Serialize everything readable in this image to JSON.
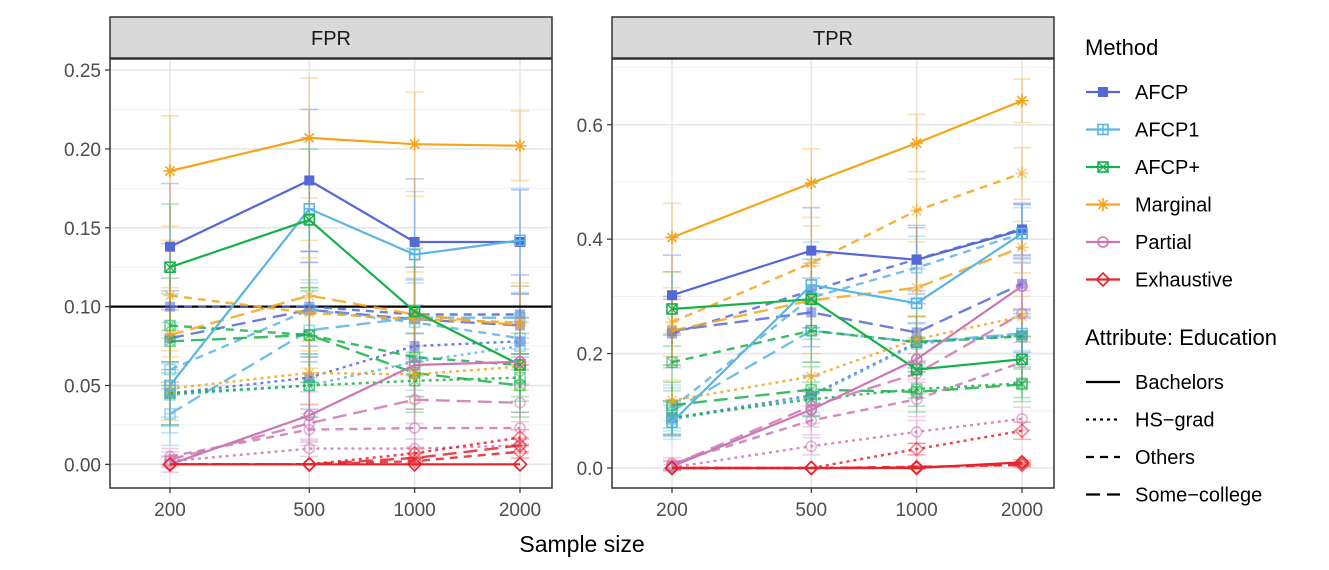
{
  "chart_data": {
    "type": "line",
    "xlabel": "Sample size",
    "x": [
      200,
      500,
      1000,
      2000
    ],
    "x_scale": "log",
    "x_tick_labels": [
      "200",
      "500",
      "1000",
      "2000"
    ],
    "reference_line": {
      "panel": "FPR",
      "y": 0.1
    },
    "panels": [
      {
        "title": "FPR",
        "ylim": [
          -0.015,
          0.257
        ],
        "yticks": [
          0,
          0.05,
          0.1,
          0.15,
          0.2,
          0.25
        ],
        "ytick_labels": [
          "0.00",
          "0.05",
          "0.10",
          "0.15",
          "0.20",
          "0.25"
        ],
        "series": [
          {
            "method": "AFCP",
            "education": "Bachelors",
            "values": [
              0.138,
              0.18,
              0.141,
              0.141
            ],
            "err": [
              0.04,
              0.045,
              0.04,
              0.033
            ]
          },
          {
            "method": "AFCP",
            "education": "HS-grad",
            "values": [
              0.045,
              0.055,
              0.075,
              0.078
            ],
            "err": [
              0.02,
              0.02,
              0.018,
              0.015
            ]
          },
          {
            "method": "AFCP",
            "education": "Others",
            "values": [
              0.1,
              0.1,
              0.095,
              0.095
            ],
            "err": [
              0.04,
              0.035,
              0.03,
              0.025
            ]
          },
          {
            "method": "AFCP",
            "education": "Some-college",
            "values": [
              0.08,
              0.098,
              0.092,
              0.088
            ],
            "err": [
              0.03,
              0.03,
              0.025,
              0.02
            ]
          },
          {
            "method": "AFCP1",
            "education": "Bachelors",
            "values": [
              0.05,
              0.162,
              0.133,
              0.142
            ],
            "err": [
              0.03,
              0.045,
              0.04,
              0.033
            ]
          },
          {
            "method": "AFCP1",
            "education": "HS-grad",
            "values": [
              0.044,
              0.05,
              0.065,
              0.075
            ],
            "err": [
              0.02,
              0.02,
              0.018,
              0.015
            ]
          },
          {
            "method": "AFCP1",
            "education": "Others",
            "values": [
              0.06,
              0.098,
              0.09,
              0.08
            ],
            "err": [
              0.03,
              0.03,
              0.025,
              0.02
            ]
          },
          {
            "method": "AFCP1",
            "education": "Some-college",
            "values": [
              0.032,
              0.085,
              0.093,
              0.093
            ],
            "err": [
              0.02,
              0.03,
              0.025,
              0.02
            ]
          },
          {
            "method": "AFCP+",
            "education": "Bachelors",
            "values": [
              0.125,
              0.155,
              0.097,
              0.063
            ],
            "err": [
              0.04,
              0.045,
              0.04,
              0.03
            ]
          },
          {
            "method": "AFCP+",
            "education": "HS-grad",
            "values": [
              0.045,
              0.05,
              0.053,
              0.055
            ],
            "err": [
              0.02,
              0.02,
              0.018,
              0.015
            ]
          },
          {
            "method": "AFCP+",
            "education": "Others",
            "values": [
              0.088,
              0.082,
              0.068,
              0.063
            ],
            "err": [
              0.03,
              0.03,
              0.025,
              0.02
            ]
          },
          {
            "method": "AFCP+",
            "education": "Some-college",
            "values": [
              0.078,
              0.082,
              0.058,
              0.05
            ],
            "err": [
              0.03,
              0.03,
              0.025,
              0.02
            ]
          },
          {
            "method": "Marginal",
            "education": "Bachelors",
            "values": [
              0.186,
              0.207,
              0.203,
              0.202
            ],
            "err": [
              0.035,
              0.038,
              0.033,
              0.022
            ]
          },
          {
            "method": "Marginal",
            "education": "HS-grad",
            "values": [
              0.048,
              0.058,
              0.057,
              0.062
            ],
            "err": [
              0.02,
              0.02,
              0.018,
              0.015
            ]
          },
          {
            "method": "Marginal",
            "education": "Others",
            "values": [
              0.107,
              0.096,
              0.092,
              0.09
            ],
            "err": [
              0.035,
              0.035,
              0.03,
              0.025
            ]
          },
          {
            "method": "Marginal",
            "education": "Some-college",
            "values": [
              0.082,
              0.107,
              0.095,
              0.088
            ],
            "err": [
              0.03,
              0.035,
              0.03,
              0.025
            ]
          },
          {
            "method": "Partial",
            "education": "Bachelors",
            "values": [
              0.0,
              0.031,
              0.063,
              0.065
            ],
            "err": [
              0.005,
              0.015,
              0.02,
              0.015
            ]
          },
          {
            "method": "Partial",
            "education": "HS-grad",
            "values": [
              0.002,
              0.01,
              0.01,
              0.012
            ],
            "err": [
              0.003,
              0.005,
              0.006,
              0.005
            ]
          },
          {
            "method": "Partial",
            "education": "Others",
            "values": [
              0.005,
              0.022,
              0.023,
              0.023
            ],
            "err": [
              0.005,
              0.01,
              0.012,
              0.01
            ]
          },
          {
            "method": "Partial",
            "education": "Some-college",
            "values": [
              0.003,
              0.026,
              0.041,
              0.039
            ],
            "err": [
              0.005,
              0.012,
              0.015,
              0.012
            ]
          },
          {
            "method": "Exhaustive",
            "education": "Bachelors",
            "values": [
              0.0,
              0.0,
              0.0,
              0.0
            ],
            "err": [
              0,
              0,
              0,
              0
            ]
          },
          {
            "method": "Exhaustive",
            "education": "HS-grad",
            "values": [
              0.0,
              0.0,
              0.007,
              0.017
            ],
            "err": [
              0,
              0,
              0.003,
              0.005
            ]
          },
          {
            "method": "Exhaustive",
            "education": "Others",
            "values": [
              0.0,
              0.0,
              0.002,
              0.008
            ],
            "err": [
              0,
              0,
              0.002,
              0.004
            ]
          },
          {
            "method": "Exhaustive",
            "education": "Some-college",
            "values": [
              0.0,
              0.0,
              0.004,
              0.012
            ],
            "err": [
              0,
              0,
              0.003,
              0.004
            ]
          }
        ]
      },
      {
        "title": "TPR",
        "ylim": [
          -0.035,
          0.715
        ],
        "yticks": [
          0,
          0.2,
          0.4,
          0.6
        ],
        "ytick_labels": [
          "0.0",
          "0.2",
          "0.4",
          "0.6"
        ],
        "series": [
          {
            "method": "AFCP",
            "education": "Bachelors",
            "values": [
              0.302,
              0.38,
              0.364,
              0.416
            ],
            "err": [
              0.07,
              0.075,
              0.06,
              0.045
            ]
          },
          {
            "method": "AFCP",
            "education": "HS-grad",
            "values": [
              0.087,
              0.127,
              0.219,
              0.232
            ],
            "err": [
              0.03,
              0.035,
              0.035,
              0.03
            ]
          },
          {
            "method": "AFCP",
            "education": "Others",
            "values": [
              0.235,
              0.31,
              0.365,
              0.418
            ],
            "err": [
              0.06,
              0.065,
              0.055,
              0.045
            ]
          },
          {
            "method": "AFCP",
            "education": "Some-college",
            "values": [
              0.24,
              0.272,
              0.237,
              0.322
            ],
            "err": [
              0.06,
              0.06,
              0.05,
              0.045
            ]
          },
          {
            "method": "AFCP1",
            "education": "Bachelors",
            "values": [
              0.08,
              0.32,
              0.288,
              0.41
            ],
            "err": [
              0.03,
              0.075,
              0.06,
              0.05
            ]
          },
          {
            "method": "AFCP1",
            "education": "HS-grad",
            "values": [
              0.085,
              0.125,
              0.217,
              0.235
            ],
            "err": [
              0.03,
              0.035,
              0.035,
              0.03
            ]
          },
          {
            "method": "AFCP1",
            "education": "Others",
            "values": [
              0.105,
              0.298,
              0.35,
              0.41
            ],
            "err": [
              0.04,
              0.06,
              0.055,
              0.045
            ]
          },
          {
            "method": "AFCP1",
            "education": "Some-college",
            "values": [
              0.1,
              0.24,
              0.22,
              0.235
            ],
            "err": [
              0.04,
              0.055,
              0.045,
              0.04
            ]
          },
          {
            "method": "AFCP+",
            "education": "Bachelors",
            "values": [
              0.278,
              0.295,
              0.172,
              0.19
            ],
            "err": [
              0.065,
              0.07,
              0.05,
              0.04
            ]
          },
          {
            "method": "AFCP+",
            "education": "HS-grad",
            "values": [
              0.088,
              0.12,
              0.138,
              0.148
            ],
            "err": [
              0.03,
              0.03,
              0.03,
              0.025
            ]
          },
          {
            "method": "AFCP+",
            "education": "Others",
            "values": [
              0.185,
              0.24,
              0.22,
              0.23
            ],
            "err": [
              0.05,
              0.055,
              0.045,
              0.04
            ]
          },
          {
            "method": "AFCP+",
            "education": "Some-college",
            "values": [
              0.11,
              0.137,
              0.133,
              0.146
            ],
            "err": [
              0.04,
              0.04,
              0.035,
              0.03
            ]
          },
          {
            "method": "Marginal",
            "education": "Bachelors",
            "values": [
              0.403,
              0.498,
              0.568,
              0.642
            ],
            "err": [
              0.06,
              0.06,
              0.05,
              0.038
            ]
          },
          {
            "method": "Marginal",
            "education": "HS-grad",
            "values": [
              0.118,
              0.16,
              0.225,
              0.265
            ],
            "err": [
              0.035,
              0.04,
              0.04,
              0.035
            ]
          },
          {
            "method": "Marginal",
            "education": "Others",
            "values": [
              0.255,
              0.358,
              0.45,
              0.515
            ],
            "err": [
              0.06,
              0.065,
              0.055,
              0.045
            ]
          },
          {
            "method": "Marginal",
            "education": "Some-college",
            "values": [
              0.24,
              0.293,
              0.315,
              0.386
            ],
            "err": [
              0.06,
              0.06,
              0.05,
              0.045
            ]
          },
          {
            "method": "Partial",
            "education": "Bachelors",
            "values": [
              0.003,
              0.102,
              0.19,
              0.318
            ],
            "err": [
              0.008,
              0.03,
              0.035,
              0.04
            ]
          },
          {
            "method": "Partial",
            "education": "HS-grad",
            "values": [
              0.001,
              0.038,
              0.063,
              0.086
            ],
            "err": [
              0.005,
              0.015,
              0.02,
              0.02
            ]
          },
          {
            "method": "Partial",
            "education": "Others",
            "values": [
              0.008,
              0.083,
              0.12,
              0.185
            ],
            "err": [
              0.01,
              0.025,
              0.03,
              0.035
            ]
          },
          {
            "method": "Partial",
            "education": "Some-college",
            "values": [
              0.005,
              0.108,
              0.165,
              0.27
            ],
            "err": [
              0.008,
              0.03,
              0.035,
              0.04
            ]
          },
          {
            "method": "Exhaustive",
            "education": "Bachelors",
            "values": [
              0.0,
              0.0,
              0.0,
              0.01
            ],
            "err": [
              0,
              0,
              0.002,
              0.004
            ]
          },
          {
            "method": "Exhaustive",
            "education": "HS-grad",
            "values": [
              0.0,
              0.0,
              0.033,
              0.065
            ],
            "err": [
              0,
              0,
              0.01,
              0.015
            ]
          },
          {
            "method": "Exhaustive",
            "education": "Others",
            "values": [
              0.0,
              0.0,
              0.002,
              0.005
            ],
            "err": [
              0,
              0,
              0.002,
              0.003
            ]
          },
          {
            "method": "Exhaustive",
            "education": "Some-college",
            "values": [
              0.0,
              0.0,
              0.001,
              0.007
            ],
            "err": [
              0,
              0,
              0.002,
              0.003
            ]
          }
        ]
      }
    ],
    "legend_method": {
      "title": "Method",
      "items": [
        {
          "name": "AFCP",
          "color": "#5468d8",
          "shape": "filled-square"
        },
        {
          "name": "AFCP1",
          "color": "#5ab4e4",
          "shape": "square-plus"
        },
        {
          "name": "AFCP+",
          "color": "#17b14a",
          "shape": "square-cross"
        },
        {
          "name": "Marginal",
          "color": "#f5a51a",
          "shape": "asterisk"
        },
        {
          "name": "Partial",
          "color": "#cc77b4",
          "shape": "circle"
        },
        {
          "name": "Exhaustive",
          "color": "#e8222b",
          "shape": "diamond"
        }
      ]
    },
    "legend_attribute": {
      "title": "Attribute: Education",
      "items": [
        {
          "name": "Bachelors",
          "dash": "solid"
        },
        {
          "name": "HS−grad",
          "dash": "dotted"
        },
        {
          "name": "Others",
          "dash": "dashed"
        },
        {
          "name": "Some−college",
          "dash": "longdash"
        }
      ]
    }
  }
}
